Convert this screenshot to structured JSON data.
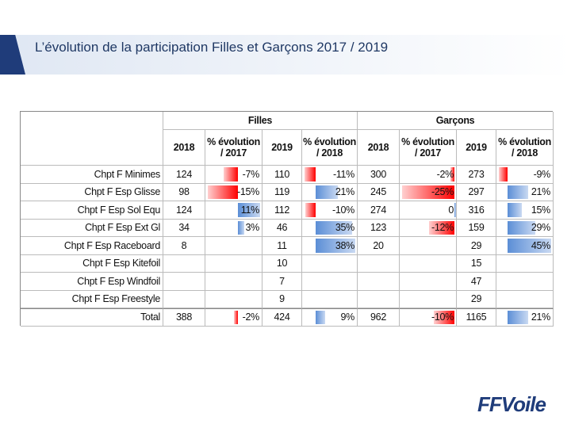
{
  "header": {
    "title": "L’évolution de la participation Filles et Garçons 2017 / 2019"
  },
  "table": {
    "groups": [
      "Filles",
      "Garçons"
    ],
    "columns": [
      [
        "2018"
      ],
      [
        "% évolution",
        "/ 2017"
      ],
      [
        "2019"
      ],
      [
        "% évolution",
        "/ 2018"
      ],
      [
        "2018"
      ],
      [
        "% évolution",
        "/ 2017"
      ],
      [
        "2019"
      ],
      [
        "% évolution",
        "/ 2018"
      ]
    ],
    "rows": [
      [
        "Chpt F Minimes",
        "124",
        "-7%",
        "110",
        "-11%",
        "300",
        "-2%",
        "273",
        "-9%"
      ],
      [
        "Chpt F Esp Glisse",
        "98",
        "-15%",
        "119",
        "21%",
        "245",
        "-25%",
        "297",
        "21%"
      ],
      [
        "Chpt F Esp Sol Equ",
        "124",
        "11%",
        "112",
        "-10%",
        "274",
        "0",
        "316",
        "15%"
      ],
      [
        "Chpt F Esp Ext Gl",
        "34",
        "3%",
        "46",
        "35%",
        "123",
        "-12%",
        "159",
        "29%"
      ],
      [
        "Chpt F Esp Raceboard",
        "8",
        null,
        "11",
        "38%",
        "20",
        null,
        "29",
        "45%"
      ],
      [
        "Chpt F Esp Kitefoil",
        null,
        null,
        "10",
        null,
        null,
        null,
        "15",
        null
      ],
      [
        "Chpt F Esp Windfoil",
        null,
        null,
        "7",
        null,
        null,
        null,
        "47",
        null
      ],
      [
        "Chpt F Esp Freestyle",
        null,
        null,
        "9",
        null,
        null,
        null,
        "29",
        null
      ],
      [
        "Total",
        "388",
        "-2%",
        "424",
        "9%",
        "962",
        "-10%",
        "1165",
        "21%"
      ]
    ]
  },
  "logo": "FFVoile"
}
